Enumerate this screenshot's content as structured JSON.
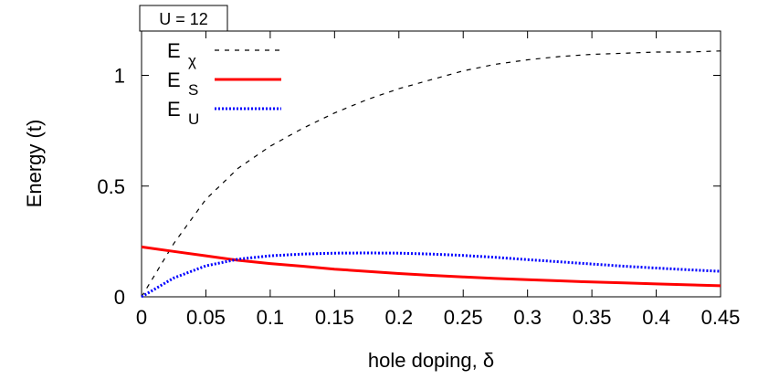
{
  "chart_data": {
    "type": "line",
    "annotation": "U = 12",
    "xlabel": "hole doping, δ",
    "ylabel": "Energy (t)",
    "xlim": [
      0,
      0.45
    ],
    "ylim": [
      0,
      1.2
    ],
    "xticks": [
      "0",
      "0.05",
      "0.1",
      "0.15",
      "0.2",
      "0.25",
      "0.3",
      "0.35",
      "0.4",
      "0.45"
    ],
    "yticks": [
      "0",
      "0.5",
      "1"
    ],
    "xtick_values": [
      0,
      0.05,
      0.1,
      0.15,
      0.2,
      0.25,
      0.3,
      0.35,
      0.4,
      0.45
    ],
    "ytick_values": [
      0,
      0.5,
      1
    ],
    "legend_placement": "top-left",
    "grid": false,
    "series": [
      {
        "name": "Eχ",
        "legend_main": "E",
        "legend_sub": "χ",
        "style": "dashed",
        "color": "#000000",
        "x": [
          0,
          0.025,
          0.05,
          0.075,
          0.1,
          0.125,
          0.15,
          0.175,
          0.2,
          0.225,
          0.25,
          0.275,
          0.3,
          0.325,
          0.35,
          0.375,
          0.4,
          0.425,
          0.45
        ],
        "y": [
          0,
          0.24,
          0.44,
          0.58,
          0.68,
          0.76,
          0.83,
          0.89,
          0.94,
          0.98,
          1.02,
          1.05,
          1.07,
          1.085,
          1.095,
          1.1,
          1.105,
          1.105,
          1.11
        ]
      },
      {
        "name": "ES",
        "legend_main": "E",
        "legend_sub": "S",
        "style": "solid",
        "color": "#ff0000",
        "x": [
          0,
          0.025,
          0.05,
          0.075,
          0.1,
          0.125,
          0.15,
          0.175,
          0.2,
          0.225,
          0.25,
          0.275,
          0.3,
          0.325,
          0.35,
          0.375,
          0.4,
          0.425,
          0.45
        ],
        "y": [
          0.225,
          0.205,
          0.185,
          0.165,
          0.15,
          0.138,
          0.125,
          0.115,
          0.105,
          0.097,
          0.09,
          0.083,
          0.077,
          0.072,
          0.067,
          0.063,
          0.058,
          0.054,
          0.05
        ]
      },
      {
        "name": "EU",
        "legend_main": "E",
        "legend_sub": "U",
        "style": "dotted",
        "color": "#0000ff",
        "x": [
          0,
          0.025,
          0.05,
          0.075,
          0.1,
          0.125,
          0.15,
          0.175,
          0.2,
          0.225,
          0.25,
          0.275,
          0.3,
          0.325,
          0.35,
          0.375,
          0.4,
          0.425,
          0.45
        ],
        "y": [
          0,
          0.085,
          0.14,
          0.17,
          0.185,
          0.193,
          0.197,
          0.198,
          0.197,
          0.193,
          0.187,
          0.178,
          0.168,
          0.158,
          0.148,
          0.138,
          0.13,
          0.122,
          0.115
        ]
      }
    ]
  }
}
